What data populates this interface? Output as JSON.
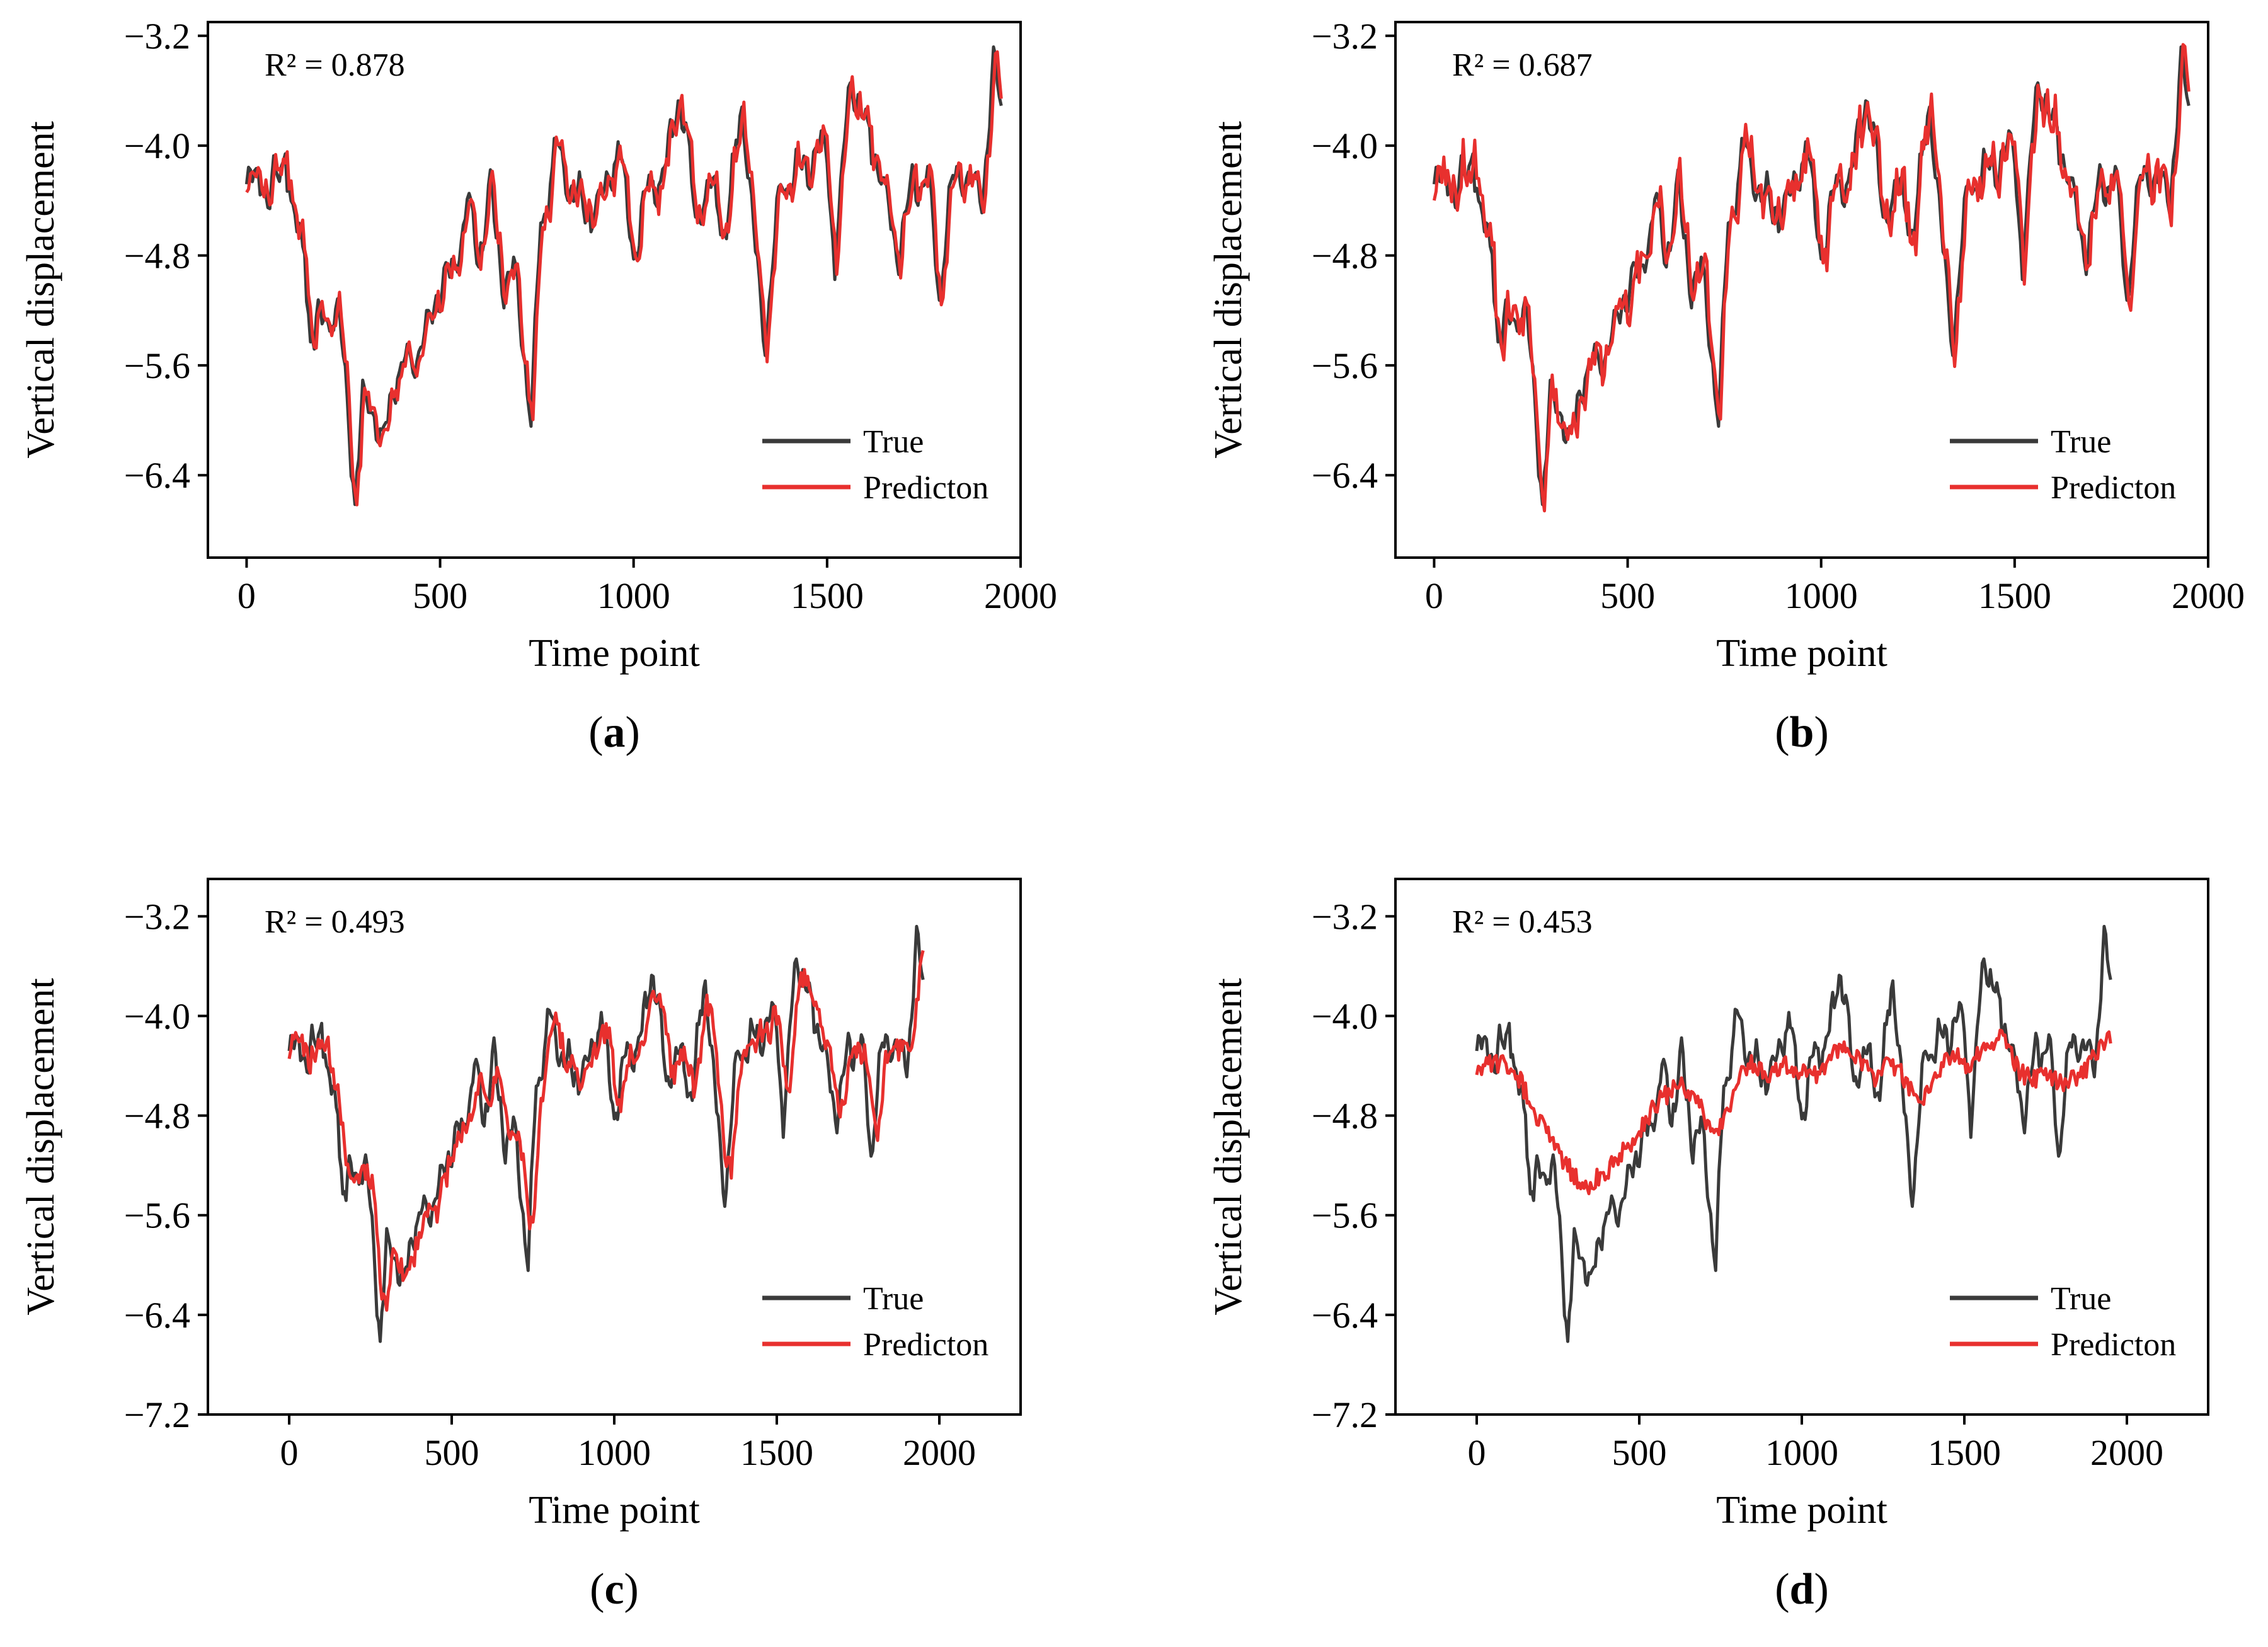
{
  "figure": {
    "background": "#ffffff"
  },
  "colors": {
    "true": "#3a3a3a",
    "prediction": "#e8302e",
    "axis": "#000000"
  },
  "chart_data": [
    {
      "panel": "a",
      "type": "line",
      "caption_letter": "a",
      "annotation": "R² = 0.878",
      "xlabel": "Time point",
      "ylabel": "Vertical displacement",
      "xlim": [
        -100,
        2000
      ],
      "ylim": [
        -7.0,
        -3.1
      ],
      "xticks": [
        0,
        500,
        1000,
        1500,
        2000
      ],
      "xtick_labels": [
        "0",
        "500",
        "1000",
        "1500",
        "2000"
      ],
      "yticks": [
        -6.4,
        -5.6,
        -4.8,
        -4.0,
        -3.2
      ],
      "ytick_labels": [
        "−6.4",
        "−5.6",
        "−4.8",
        "−4.0",
        "−3.2"
      ],
      "legend": [
        "True",
        "Predicton"
      ],
      "legend_position": "bottom-right",
      "noise": 0.06,
      "smooth": 0,
      "lag": 4,
      "series": [
        {
          "name": "True",
          "color": "#3a3a3a"
        },
        {
          "name": "Predicton",
          "color": "#e8302e"
        }
      ]
    },
    {
      "panel": "b",
      "type": "line",
      "caption_letter": "b",
      "annotation": "R² = 0.687",
      "xlabel": "Time point",
      "ylabel": "Vertical displacement",
      "xlim": [
        -100,
        2000
      ],
      "ylim": [
        -7.0,
        -3.1
      ],
      "xticks": [
        0,
        500,
        1000,
        1500,
        2000
      ],
      "xtick_labels": [
        "0",
        "500",
        "1000",
        "1500",
        "2000"
      ],
      "yticks": [
        -6.4,
        -5.6,
        -4.8,
        -4.0,
        -3.2
      ],
      "ytick_labels": [
        "−6.4",
        "−5.6",
        "−4.8",
        "−4.0",
        "−3.2"
      ],
      "legend": [
        "True",
        "Predicton"
      ],
      "legend_position": "bottom-right",
      "noise": 0.12,
      "smooth": 0,
      "lag": 6,
      "series": [
        {
          "name": "True",
          "color": "#3a3a3a"
        },
        {
          "name": "Predicton",
          "color": "#e8302e"
        }
      ]
    },
    {
      "panel": "c",
      "type": "line",
      "caption_letter": "c",
      "annotation": "R² = 0.493",
      "xlabel": "Time point",
      "ylabel": "Vertical displacement",
      "xlim": [
        -250,
        2250
      ],
      "ylim": [
        -7.2,
        -2.9
      ],
      "xticks": [
        0,
        500,
        1000,
        1500,
        2000
      ],
      "xtick_labels": [
        "0",
        "500",
        "1000",
        "1500",
        "2000"
      ],
      "yticks": [
        -7.2,
        -6.4,
        -5.6,
        -4.8,
        -4.0,
        -3.2
      ],
      "ytick_labels": [
        "−7.2",
        "−6.4",
        "−5.6",
        "−4.8",
        "−4.0",
        "−3.2"
      ],
      "legend": [
        "True",
        "Predicton"
      ],
      "legend_position": "bottom-right",
      "noise": 0.1,
      "smooth": 3,
      "lag": 14,
      "series": [
        {
          "name": "True",
          "color": "#3a3a3a"
        },
        {
          "name": "Predicton",
          "color": "#e8302e"
        }
      ]
    },
    {
      "panel": "d",
      "type": "line",
      "caption_letter": "d",
      "annotation": "R² = 0.453",
      "xlabel": "Time point",
      "ylabel": "Vertical displacement",
      "xlim": [
        -250,
        2250
      ],
      "ylim": [
        -7.2,
        -2.9
      ],
      "xticks": [
        0,
        500,
        1000,
        1500,
        2000
      ],
      "xtick_labels": [
        "0",
        "500",
        "1000",
        "1500",
        "2000"
      ],
      "yticks": [
        -7.2,
        -6.4,
        -5.6,
        -4.8,
        -4.0,
        -3.2
      ],
      "ytick_labels": [
        "−7.2",
        "−6.4",
        "−5.6",
        "−4.8",
        "−4.0",
        "−3.2"
      ],
      "legend": [
        "True",
        "Predicton"
      ],
      "legend_position": "bottom-right",
      "noise": 0.08,
      "smooth": 10,
      "lag": 20,
      "shrink": 0.55,
      "series": [
        {
          "name": "True",
          "color": "#3a3a3a"
        },
        {
          "name": "Predicton",
          "color": "#e8302e"
        }
      ]
    }
  ],
  "true_series_keypoints": {
    "x": [
      0,
      30,
      60,
      100,
      120,
      150,
      165,
      200,
      240,
      260,
      280,
      300,
      320,
      350,
      380,
      420,
      460,
      500,
      540,
      570,
      600,
      630,
      660,
      690,
      720,
      735,
      760,
      800,
      840,
      880,
      920,
      960,
      1000,
      1040,
      1080,
      1120,
      1160,
      1200,
      1240,
      1280,
      1320,
      1340,
      1380,
      1420,
      1460,
      1500,
      1520,
      1560,
      1590,
      1630,
      1680,
      1720,
      1760,
      1790,
      1820,
      1860,
      1900,
      1930,
      1950
    ],
    "y": [
      -4.3,
      -4.2,
      -4.4,
      -4.0,
      -4.6,
      -4.7,
      -5.5,
      -5.2,
      -5.3,
      -5.8,
      -6.6,
      -5.9,
      -5.8,
      -6.2,
      -5.7,
      -5.6,
      -5.4,
      -5.0,
      -4.9,
      -4.4,
      -4.8,
      -4.3,
      -5.0,
      -4.9,
      -5.6,
      -6.0,
      -4.6,
      -4.0,
      -4.3,
      -4.5,
      -4.4,
      -4.0,
      -4.8,
      -4.3,
      -4.2,
      -3.6,
      -4.5,
      -4.3,
      -4.6,
      -3.7,
      -4.9,
      -5.4,
      -4.3,
      -4.2,
      -4.1,
      -4.0,
      -4.9,
      -3.5,
      -3.8,
      -4.1,
      -4.8,
      -4.3,
      -4.2,
      -5.1,
      -4.3,
      -4.2,
      -4.4,
      -3.4,
      -3.7
    ]
  }
}
